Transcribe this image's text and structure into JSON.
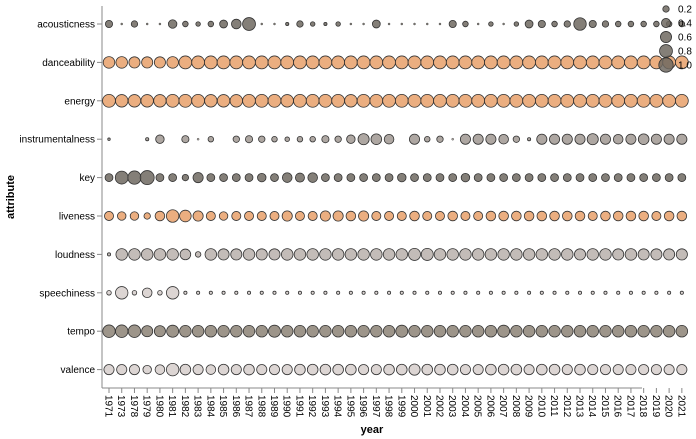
{
  "chart_data": {
    "type": "scatter",
    "xlabel": "year",
    "ylabel": "attribute",
    "years": [
      "1971",
      "1973",
      "1978",
      "1979",
      "1980",
      "1981",
      "1982",
      "1983",
      "1984",
      "1985",
      "1986",
      "1987",
      "1988",
      "1989",
      "1990",
      "1991",
      "1992",
      "1993",
      "1994",
      "1995",
      "1996",
      "1997",
      "1998",
      "1999",
      "2000",
      "2001",
      "2002",
      "2003",
      "2004",
      "2005",
      "2006",
      "2007",
      "2008",
      "2009",
      "2010",
      "2011",
      "2012",
      "2013",
      "2014",
      "2015",
      "2016",
      "2017",
      "2018",
      "2019",
      "2020",
      "2021"
    ],
    "attributes": [
      "acousticness",
      "danceability",
      "energy",
      "instrumentalness",
      "key",
      "liveness",
      "loudness",
      "speechiness",
      "tempo",
      "valence"
    ],
    "attribute_colors": {
      "acousticness": "#6e6960",
      "danceability": "#e8a06a",
      "energy": "#e8a06a",
      "instrumentalness": "#a09892",
      "key": "#6e6960",
      "liveness": "#e8a06a",
      "loudness": "#b8b0ab",
      "speechiness": "#d6cecb",
      "tempo": "#8c8276",
      "valence": "#d6cecb"
    },
    "values": {
      "acousticness": [
        0.25,
        0.02,
        0.2,
        0.02,
        0.02,
        0.35,
        0.15,
        0.1,
        0.15,
        0.3,
        0.45,
        0.8,
        0.02,
        0.02,
        0.05,
        0.2,
        0.1,
        0.05,
        0.1,
        0.02,
        0.02,
        0.3,
        0.02,
        0.02,
        0.02,
        0.02,
        0.02,
        0.25,
        0.15,
        0.02,
        0.1,
        0.02,
        0.1,
        0.3,
        0.25,
        0.15,
        0.2,
        0.75,
        0.25,
        0.2,
        0.15,
        0.15,
        0.15,
        0.15,
        0.15,
        0.15
      ],
      "danceability": [
        0.65,
        0.65,
        0.6,
        0.6,
        0.6,
        0.65,
        0.8,
        0.8,
        0.8,
        0.8,
        0.8,
        0.8,
        0.8,
        0.8,
        0.8,
        0.8,
        0.8,
        0.8,
        0.8,
        0.8,
        0.8,
        0.8,
        0.8,
        0.8,
        0.8,
        0.8,
        0.8,
        0.8,
        0.8,
        0.8,
        0.8,
        0.8,
        0.8,
        0.8,
        0.8,
        0.8,
        0.8,
        0.8,
        0.8,
        0.8,
        0.8,
        0.8,
        0.8,
        0.8,
        0.8,
        0.8
      ],
      "energy": [
        0.8,
        0.75,
        0.75,
        0.75,
        0.75,
        0.8,
        0.8,
        0.8,
        0.75,
        0.75,
        0.75,
        0.8,
        0.8,
        0.8,
        0.75,
        0.8,
        0.8,
        0.8,
        0.8,
        0.75,
        0.8,
        0.8,
        0.8,
        0.8,
        0.8,
        0.8,
        0.8,
        0.8,
        0.8,
        0.8,
        0.8,
        0.8,
        0.8,
        0.8,
        0.8,
        0.8,
        0.8,
        0.8,
        0.8,
        0.8,
        0.8,
        0.8,
        0.8,
        0.8,
        0.8,
        0.8
      ],
      "instrumentalness": [
        0.03,
        0.0,
        0.0,
        0.05,
        0.35,
        0.0,
        0.25,
        0.02,
        0.15,
        0.0,
        0.2,
        0.25,
        0.2,
        0.15,
        0.1,
        0.15,
        0.15,
        0.25,
        0.2,
        0.35,
        0.6,
        0.55,
        0.45,
        0.0,
        0.5,
        0.15,
        0.2,
        0.02,
        0.5,
        0.5,
        0.5,
        0.45,
        0.2,
        0.05,
        0.5,
        0.5,
        0.5,
        0.5,
        0.6,
        0.5,
        0.45,
        0.5,
        0.55,
        0.5,
        0.5,
        0.5
      ],
      "key": [
        0.3,
        0.8,
        0.85,
        0.95,
        0.3,
        0.3,
        0.2,
        0.5,
        0.3,
        0.3,
        0.3,
        0.3,
        0.35,
        0.3,
        0.45,
        0.4,
        0.45,
        0.3,
        0.3,
        0.3,
        0.3,
        0.3,
        0.3,
        0.35,
        0.3,
        0.3,
        0.3,
        0.3,
        0.35,
        0.3,
        0.3,
        0.3,
        0.3,
        0.3,
        0.3,
        0.3,
        0.3,
        0.3,
        0.3,
        0.3,
        0.3,
        0.3,
        0.3,
        0.3,
        0.3,
        0.3
      ],
      "liveness": [
        0.4,
        0.35,
        0.35,
        0.2,
        0.45,
        0.75,
        0.65,
        0.5,
        0.4,
        0.35,
        0.4,
        0.4,
        0.4,
        0.4,
        0.5,
        0.4,
        0.4,
        0.5,
        0.5,
        0.45,
        0.5,
        0.4,
        0.4,
        0.4,
        0.45,
        0.4,
        0.4,
        0.45,
        0.4,
        0.4,
        0.45,
        0.45,
        0.45,
        0.45,
        0.45,
        0.45,
        0.45,
        0.45,
        0.4,
        0.45,
        0.45,
        0.45,
        0.45,
        0.4,
        0.45,
        0.45
      ],
      "loudness": [
        0.05,
        0.65,
        0.65,
        0.65,
        0.65,
        0.65,
        0.55,
        0.15,
        0.65,
        0.6,
        0.6,
        0.65,
        0.6,
        0.6,
        0.65,
        0.65,
        0.65,
        0.65,
        0.65,
        0.65,
        0.65,
        0.65,
        0.65,
        0.65,
        0.7,
        0.7,
        0.65,
        0.65,
        0.65,
        0.65,
        0.65,
        0.65,
        0.65,
        0.65,
        0.65,
        0.65,
        0.65,
        0.6,
        0.65,
        0.65,
        0.6,
        0.65,
        0.6,
        0.6,
        0.6,
        0.6
      ],
      "speechiness": [
        0.1,
        0.75,
        0.1,
        0.45,
        0.1,
        0.75,
        0.05,
        0.05,
        0.05,
        0.05,
        0.05,
        0.05,
        0.05,
        0.05,
        0.05,
        0.05,
        0.05,
        0.05,
        0.05,
        0.05,
        0.05,
        0.05,
        0.05,
        0.05,
        0.05,
        0.05,
        0.05,
        0.05,
        0.05,
        0.05,
        0.05,
        0.05,
        0.05,
        0.05,
        0.05,
        0.05,
        0.05,
        0.05,
        0.05,
        0.05,
        0.05,
        0.05,
        0.05,
        0.05,
        0.05,
        0.05
      ],
      "tempo": [
        0.75,
        0.75,
        0.75,
        0.6,
        0.6,
        0.7,
        0.65,
        0.65,
        0.65,
        0.65,
        0.65,
        0.65,
        0.65,
        0.7,
        0.65,
        0.65,
        0.65,
        0.65,
        0.65,
        0.65,
        0.65,
        0.65,
        0.65,
        0.7,
        0.65,
        0.65,
        0.65,
        0.65,
        0.65,
        0.65,
        0.65,
        0.7,
        0.65,
        0.65,
        0.65,
        0.65,
        0.65,
        0.65,
        0.65,
        0.65,
        0.65,
        0.65,
        0.65,
        0.65,
        0.65,
        0.65
      ],
      "valence": [
        0.5,
        0.5,
        0.5,
        0.35,
        0.45,
        0.75,
        0.55,
        0.5,
        0.45,
        0.55,
        0.5,
        0.55,
        0.5,
        0.5,
        0.5,
        0.55,
        0.55,
        0.55,
        0.55,
        0.55,
        0.5,
        0.5,
        0.55,
        0.55,
        0.6,
        0.55,
        0.55,
        0.55,
        0.5,
        0.5,
        0.55,
        0.55,
        0.55,
        0.5,
        0.55,
        0.55,
        0.5,
        0.55,
        0.5,
        0.5,
        0.5,
        0.5,
        0.5,
        0.5,
        0.5,
        0.5
      ]
    },
    "size_legend": {
      "values": [
        0.2,
        0.4,
        0.6,
        0.8,
        1.0
      ],
      "labels": [
        "0.2",
        "0.4",
        "0.6",
        "0.8",
        "1.0"
      ],
      "position": "top-right"
    },
    "size_range": [
      0,
      1
    ],
    "grid": false
  }
}
